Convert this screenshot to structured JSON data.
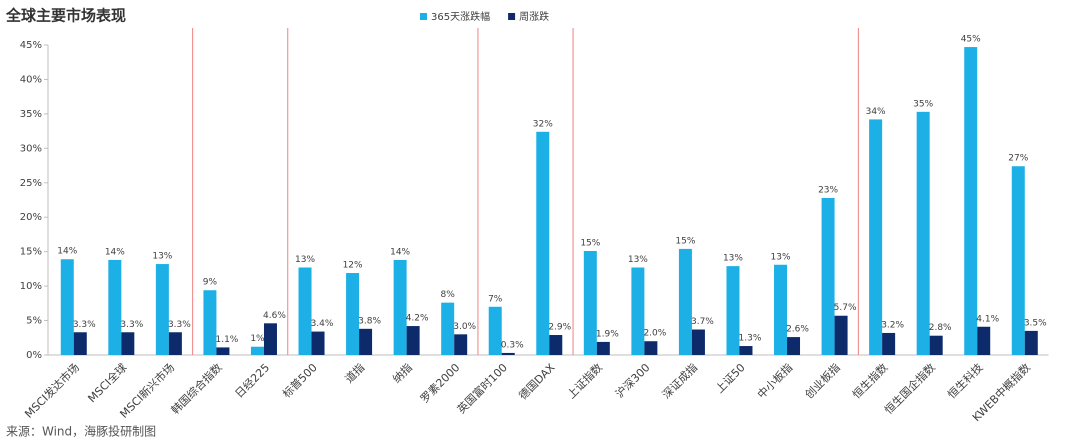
{
  "chart_data": {
    "type": "bar",
    "title": "全球主要市场表现",
    "categories": [
      "MSCI发达市场",
      "MSCI全球",
      "MSCI新兴市场",
      "韩国综合指数",
      "日经225",
      "标普500",
      "道指",
      "纳指",
      "罗素2000",
      "英国富时100",
      "德国DAX",
      "上证指数",
      "沪深300",
      "深证成指",
      "上证50",
      "中小板指",
      "创业板指",
      "恒生指数",
      "恒生国企指数",
      "恒生科技",
      "KWEB中概指数"
    ],
    "series": [
      {
        "name": "365天涨跌幅",
        "color": "#1cb0e6",
        "values": [
          13.9,
          13.8,
          13.2,
          9.4,
          1.2,
          12.7,
          11.9,
          13.8,
          7.6,
          7.0,
          32.4,
          15.1,
          12.7,
          15.4,
          12.9,
          13.1,
          22.8,
          34.2,
          35.3,
          44.7,
          27.4
        ],
        "value_labels": [
          "14%",
          "14%",
          "13%",
          "9%",
          "1%",
          "13%",
          "12%",
          "14%",
          "8%",
          "7%",
          "32%",
          "15%",
          "13%",
          "15%",
          "13%",
          "13%",
          "23%",
          "34%",
          "35%",
          "45%",
          "27%"
        ]
      },
      {
        "name": "周涨跌",
        "color": "#0d2a6b",
        "values": [
          3.3,
          3.3,
          3.3,
          1.1,
          4.6,
          3.4,
          3.8,
          4.2,
          3.0,
          0.3,
          2.9,
          1.9,
          2.0,
          3.7,
          1.3,
          2.6,
          5.7,
          3.2,
          2.8,
          4.1,
          3.5
        ],
        "value_labels": [
          "3.3%",
          "3.3%",
          "3.3%",
          "1.1%",
          "4.6%",
          "3.4%",
          "3.8%",
          "4.2%",
          "3.0%",
          "0.3%",
          "2.9%",
          "1.9%",
          "2.0%",
          "3.7%",
          "1.3%",
          "2.6%",
          "5.7%",
          "3.2%",
          "2.8%",
          "4.1%",
          "3.5%"
        ]
      }
    ],
    "ylim": [
      0,
      45
    ],
    "yticks": [
      {
        "value": 0,
        "label": "0%"
      },
      {
        "value": 5,
        "label": "5%"
      },
      {
        "value": 10,
        "label": "10%"
      },
      {
        "value": 15,
        "label": "15%"
      },
      {
        "value": 20,
        "label": "20%"
      },
      {
        "value": 25,
        "label": "25%"
      },
      {
        "value": 30,
        "label": "30%"
      },
      {
        "value": 35,
        "label": "35%"
      },
      {
        "value": 40,
        "label": "40%"
      },
      {
        "value": 45,
        "label": "45%"
      }
    ],
    "grid": false,
    "legend": "top",
    "source": "来源：Wind，海豚投研制图"
  }
}
